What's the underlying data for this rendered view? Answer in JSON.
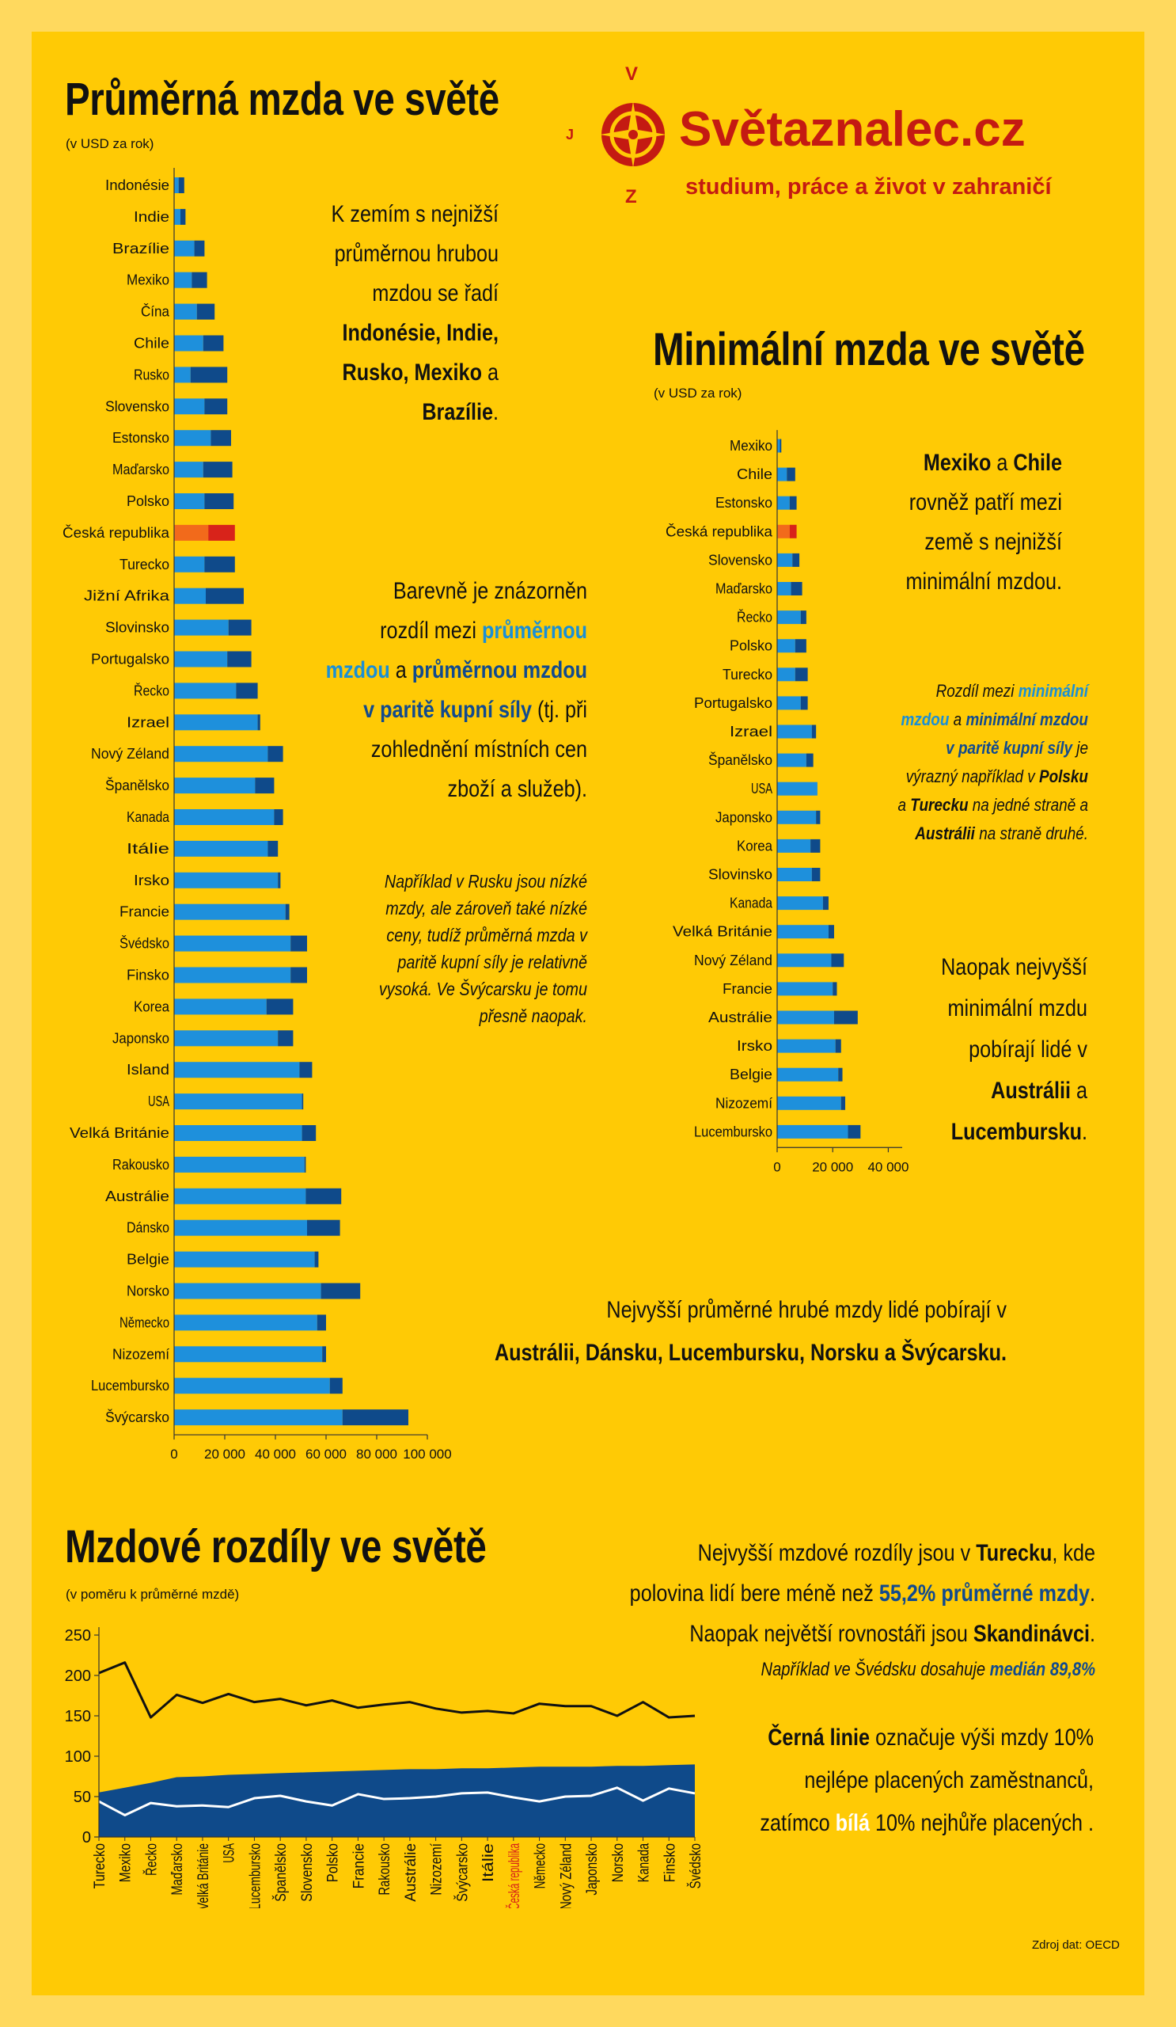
{
  "logo": {
    "title": "Světaznalec.cz",
    "subtitle": "studium, práce a život v zahraničí",
    "compass": {
      "n": "V",
      "w": "J",
      "s": "Z"
    }
  },
  "avg": {
    "title": "Průměrná mzda ve světě",
    "subtitle": "(v USD za rok)",
    "note1": {
      "l1": "K zemím s nejnižší",
      "l2": "průměrnou hrubou",
      "l3": "mzdou se řadí",
      "l4": "Indonésie, Indie,",
      "l5a": "Rusko, Mexiko",
      "l5b": " a",
      "l6": "Brazílie",
      "l6b": "."
    },
    "note2": {
      "l1": "Barevně je znázorněn",
      "l2a": "rozdíl mezi ",
      "l2b": "průměrnou",
      "l3a": "mzdou",
      "l3b": " a ",
      "l3c": "průměrnou mzdou",
      "l4a": "v paritě kupní síly",
      "l4b": " (tj. při",
      "l5": "zohlednění místních cen",
      "l6": "zboží a služeb)."
    },
    "note3": {
      "l1": "Například v Rusku jsou nízké",
      "l2": "mzdy, ale zároveň také nízké",
      "l3": "ceny, tudíž průměrná  mzda  v",
      "l4": "paritě kupní síly je  relativně",
      "l5": "vysoká. Ve  Švýcarsku je tomu",
      "l6": "přesně  naopak."
    },
    "note4": {
      "l1": "Nejvyšší průměrné hrubé mzdy lidé pobírají v",
      "l2": "Austrálii, Dánsku, Lucembursku, Norsku a Švýcarsku."
    }
  },
  "min": {
    "title": "Minimální mzda ve světě",
    "subtitle": "(v USD za rok)",
    "note1": {
      "l1a": "Mexiko",
      "l1b": " a ",
      "l1c": "Chile",
      "l2": "rovněž patří mezi",
      "l3": "země s nejnižší",
      "l4": "minimální mzdou."
    },
    "note2": {
      "l1a": "Rozdíl mezi ",
      "l1b": "minimální",
      "l2a": "mzdou",
      "l2b": " a ",
      "l2c": "minimální mzdou",
      "l3a": "v paritě kupní síly",
      "l3b": " je",
      "l4a": "výrazný například v ",
      "l4b": "Polsku",
      "l5a": "a ",
      "l5b": "Turecku",
      "l5c": " na jedné straně a",
      "l6a": "Austrálii",
      "l6b": " na straně druhé."
    },
    "note3": {
      "l1": "Naopak nejvyšší",
      "l2": "minimální mzdu",
      "l3": "pobírají lidé v",
      "l4": "Austrálii",
      "l4b": " a",
      "l5": "Lucembursku",
      "l5b": "."
    }
  },
  "diff": {
    "title": "Mzdové rozdíly ve světě",
    "subtitle": "(v poměru k průměrné mzdě)",
    "note1": {
      "l1a": "Nejvyšší mzdové rozdíly jsou v ",
      "l1b": "Turecku",
      "l1c": ", kde",
      "l2a": "polovina lidí bere méně než ",
      "l2b": "55,2% průměrné mzdy",
      "l2c": ".",
      "l3a": "Naopak největší rovnostáři jsou ",
      "l3b": "Skandinávci",
      "l3c": ".",
      "l4a": "Například ve Švédsku dosahuje ",
      "l4b": "medián 89,8%"
    },
    "note2": {
      "l1a": "Černá linie",
      "l1b": " označuje výši mzdy 10%",
      "l2": "nejlépe placených zaměstnanců,",
      "l3a": "zatímco ",
      "l3b": "bílá",
      "l3c": " 10% nejhůře placených ."
    },
    "source": "Zdroj dat: OECD"
  },
  "colors": {
    "panel": "#ffca05",
    "outer": "#ffd95e",
    "dark": "#0f4a8a",
    "light": "#1e90dc",
    "red": "#d8231a",
    "orange": "#f26a1b",
    "brand": "#c41a12"
  },
  "chart_data": [
    {
      "type": "bar",
      "orientation": "horizontal",
      "title": "Průměrná mzda ve světě",
      "subtitle": "(v USD za rok)",
      "categories": [
        "Indonésie",
        "Indie",
        "Brazílie",
        "Mexiko",
        "Čína",
        "Chile",
        "Rusko",
        "Slovensko",
        "Estonsko",
        "Maďarsko",
        "Polsko",
        "Česká republika",
        "Turecko",
        "Jižní Afrika",
        "Slovinsko",
        "Portugalsko",
        "Řecko",
        "Izrael",
        "Nový Zéland",
        "Španělsko",
        "Kanada",
        "Itálie",
        "Irsko",
        "Francie",
        "Švédsko",
        "Finsko",
        "Korea",
        "Japonsko",
        "Island",
        "USA",
        "Velká Británie",
        "Rakousko",
        "Austrálie",
        "Dánsko",
        "Belgie",
        "Norsko",
        "Německo",
        "Nizozemí",
        "Lucembursko",
        "Švýcarsko"
      ],
      "series": [
        {
          "values": [
            1800,
            2500,
            8000,
            7000,
            9000,
            11500,
            6500,
            12000,
            14500,
            11500,
            12000,
            13500,
            12000,
            12500,
            21500,
            21000,
            24500,
            33000,
            37000,
            32000,
            39500,
            37000,
            41000,
            44000,
            46000,
            46000,
            36500,
            41000,
            49500,
            50500,
            50500,
            51500,
            52000,
            52500,
            55500,
            58000,
            56500,
            58500,
            61500,
            66500
          ]
        },
        {
          "values": [
            4000,
            4500,
            12000,
            13000,
            16000,
            19500,
            21000,
            21000,
            22500,
            23000,
            23500,
            24000,
            24000,
            27500,
            30500,
            30500,
            33000,
            34000,
            43000,
            39500,
            43000,
            41000,
            42000,
            45500,
            52500,
            52500,
            47000,
            47000,
            54500,
            51000,
            56000,
            52000,
            66000,
            65500,
            57000,
            73500,
            60000,
            60000,
            66500,
            92500
          ]
        }
      ],
      "series_note": "for each country, one series is drawn as a dark bar segment and the other as a light blue one",
      "highlight": "Česká republika",
      "xlim": [
        0,
        100000
      ],
      "xticks": [
        "0",
        "20 000",
        "40 000",
        "60 000",
        "80 000",
        "100 000"
      ]
    },
    {
      "type": "bar",
      "orientation": "horizontal",
      "title": "Minimální mzda ve světě",
      "subtitle": "(v USD za rok)",
      "categories": [
        "Mexiko",
        "Chile",
        "Estonsko",
        "Česká republika",
        "Slovensko",
        "Maďarsko",
        "Řecko",
        "Polsko",
        "Turecko",
        "Portugalsko",
        "Izrael",
        "Španělsko",
        "USA",
        "Japonsko",
        "Korea",
        "Slovinsko",
        "Kanada",
        "Velká Británie",
        "Nový Zéland",
        "Francie",
        "Austrálie",
        "Irsko",
        "Belgie",
        "Nizozemí",
        "Lucembursko"
      ],
      "series": [
        {
          "values": [
            1000,
            3500,
            4500,
            4500,
            5500,
            5000,
            8500,
            6500,
            6500,
            8500,
            12500,
            10500,
            14500,
            14000,
            12000,
            12500,
            16500,
            18500,
            19500,
            20000,
            20500,
            21000,
            22000,
            23000,
            25500
          ]
        },
        {
          "values": [
            1500,
            6500,
            7000,
            7000,
            8000,
            9000,
            10500,
            10500,
            11000,
            11000,
            14000,
            13000,
            14500,
            15500,
            15500,
            15500,
            18500,
            20500,
            24000,
            21500,
            29000,
            23000,
            23500,
            24500,
            30000
          ]
        }
      ],
      "series_note": "for each country, one series is drawn as a dark bar segment and the other as a light blue one",
      "highlight": "Česká republika",
      "xlim": [
        0,
        45000
      ],
      "xticks": [
        "0",
        "20 000",
        "40 000"
      ]
    },
    {
      "type": "area",
      "title": "Mzdové rozdíly ve světě",
      "subtitle": "(v poměru k průměrné mzdě)",
      "categories": [
        "Turecko",
        "Mexiko",
        "Řecko",
        "Maďarsko",
        "Velká Británie",
        "USA",
        "Lucembursko",
        "Španělsko",
        "Slovensko",
        "Polsko",
        "Francie",
        "Rakousko",
        "Austrálie",
        "Nizozemí",
        "Švýcarsko",
        "Itálie",
        "Česká republika",
        "Německo",
        "Nový Zéland",
        "Japonsko",
        "Norsko",
        "Kanada",
        "Finsko",
        "Švédsko"
      ],
      "series": [
        {
          "name": "",
          "kind": "line-black",
          "values": [
            203,
            216,
            148,
            176,
            166,
            177,
            167,
            171,
            163,
            169,
            160,
            164,
            167,
            159,
            154,
            156,
            153,
            165,
            162,
            162,
            150,
            167,
            148,
            150
          ]
        },
        {
          "name": "",
          "kind": "area",
          "values": [
            55.2,
            61,
            67,
            74,
            75,
            77,
            78,
            79,
            80,
            81,
            82,
            83,
            84,
            84,
            85,
            85,
            86,
            87,
            87,
            87,
            88,
            88,
            89,
            89.8
          ]
        },
        {
          "name": "",
          "kind": "line-white",
          "values": [
            44,
            27,
            42,
            38,
            39,
            37,
            48,
            51,
            44,
            39,
            53,
            47,
            48,
            50,
            54,
            55,
            49,
            44,
            50,
            51,
            61,
            45,
            60,
            54
          ]
        }
      ],
      "highlight": "Česká republika",
      "ylim": [
        0,
        250
      ],
      "yticks": [
        0,
        50,
        100,
        150,
        200,
        250
      ]
    }
  ]
}
